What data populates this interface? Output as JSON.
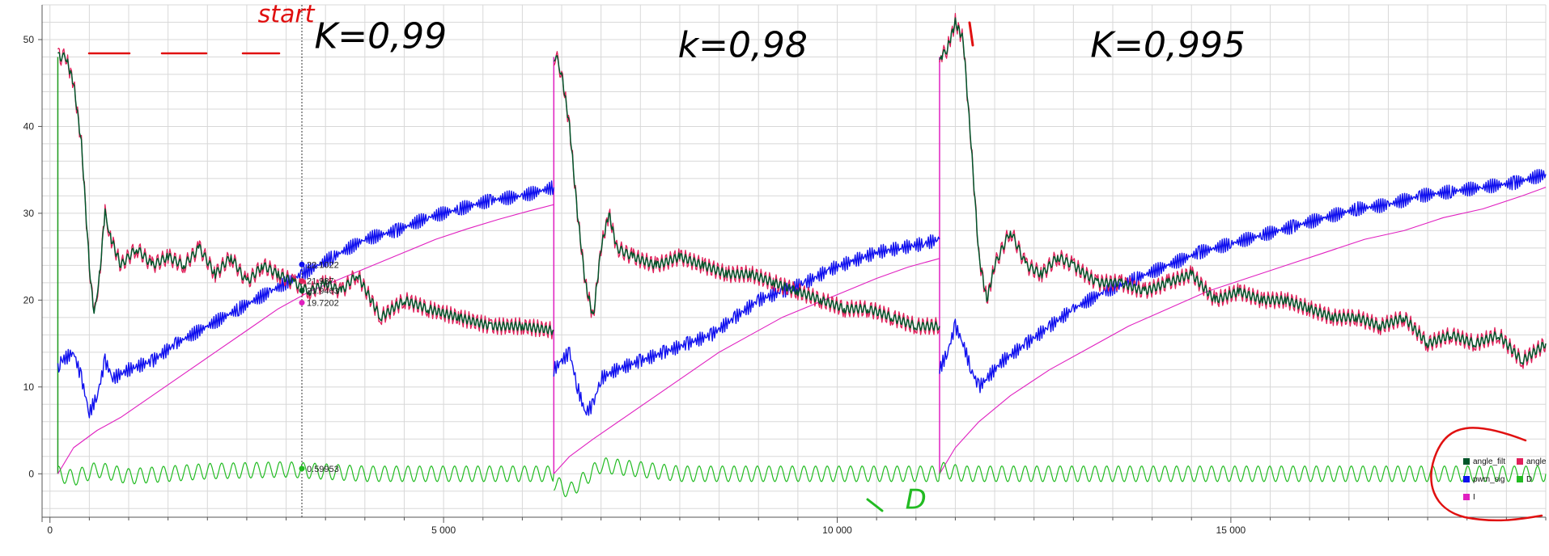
{
  "chart_data": {
    "type": "line",
    "xlim": [
      -100,
      19000
    ],
    "ylim": [
      -5,
      54
    ],
    "y_ticks": [
      0,
      10,
      20,
      30,
      40,
      50
    ],
    "x_ticks": [
      0,
      5000,
      10000,
      15000
    ],
    "x_tick_labels": [
      "0",
      "5 000",
      "10 000",
      "15 000"
    ],
    "grid": true,
    "segments": [
      {
        "start": 100,
        "end": 6400
      },
      {
        "start": 6400,
        "end": 11300
      },
      {
        "start": 11300,
        "end": 19000
      }
    ],
    "series": [
      {
        "name": "angle_filt",
        "color": "#00552a",
        "segments": [
          {
            "x": [
              100,
              130,
              200,
              300,
              400,
              500,
              560,
              640,
              700,
              780,
              900,
              1100,
              1300,
              1500,
              1700,
              1900,
              2100,
              2300,
              2500,
              2700,
              2900,
              3100,
              3300,
              3500,
              3700,
              3900,
              4200,
              4500,
              4800,
              5200,
              5600,
              6000,
              6400
            ],
            "y": [
              48,
              48,
              48,
              45,
              38,
              24,
              18,
              24,
              30,
              27,
              24,
              26,
              24,
              25,
              24,
              26,
              23,
              25,
              22,
              24,
              23,
              22,
              21,
              22,
              21,
              23,
              18,
              20,
              19,
              18,
              17,
              17,
              16.5
            ]
          },
          {
            "x": [
              6400,
              6430,
              6500,
              6600,
              6700,
              6800,
              6900,
              7000,
              7100,
              7200,
              7400,
              7700,
              8000,
              8300,
              8600,
              8900,
              9200,
              9500,
              9800,
              10100,
              10400,
              10700,
              11000,
              11300
            ],
            "y": [
              48,
              48,
              46,
              40,
              30,
              22,
              18,
              26,
              30,
              26,
              25,
              24,
              25,
              24,
              23,
              23,
              22,
              21,
              20,
              19,
              19,
              18,
              17,
              17
            ]
          },
          {
            "x": [
              11300,
              11330,
              11400,
              11500,
              11600,
              11700,
              11800,
              11900,
              12000,
              12200,
              12400,
              12600,
              12800,
              13000,
              13300,
              13600,
              13900,
              14200,
              14500,
              14800,
              15100,
              15400,
              15700,
              16000,
              16300,
              16600,
              16900,
              17200,
              17500,
              17800,
              18100,
              18400,
              18700,
              19000
            ],
            "y": [
              48,
              48,
              49,
              52,
              50,
              38,
              25,
              20,
              24,
              28,
              24,
              23,
              25,
              24,
              22,
              22,
              21,
              22,
              23,
              20,
              21,
              20,
              20,
              19,
              18,
              18,
              17,
              18,
              15,
              16,
              15,
              16,
              13,
              15
            ]
          }
        ]
      },
      {
        "name": "angle",
        "color": "#e0205a",
        "segments": [
          {
            "x": [
              100,
              130,
              200,
              300,
              400,
              500,
              560,
              640,
              700,
              780,
              900,
              1100,
              1300,
              1500,
              1700,
              1900,
              2100,
              2300,
              2500,
              2700,
              2900,
              3100,
              3300,
              3500,
              3700,
              3900,
              4200,
              4500,
              4800,
              5200,
              5600,
              6000,
              6400
            ],
            "y": [
              48,
              48,
              48,
              45,
              38,
              24,
              18,
              24,
              30,
              27,
              24,
              26,
              24,
              25,
              24,
              26,
              23,
              25,
              22,
              24,
              23,
              22,
              21,
              22,
              21,
              23,
              18,
              20,
              19,
              18,
              17,
              17,
              16.5
            ]
          },
          {
            "x": [
              6400,
              6430,
              6500,
              6600,
              6700,
              6800,
              6900,
              7000,
              7100,
              7200,
              7400,
              7700,
              8000,
              8300,
              8600,
              8900,
              9200,
              9500,
              9800,
              10100,
              10400,
              10700,
              11000,
              11300
            ],
            "y": [
              48,
              48,
              46,
              40,
              30,
              22,
              18,
              26,
              30,
              26,
              25,
              24,
              25,
              24,
              23,
              23,
              22,
              21,
              20,
              19,
              19,
              18,
              17,
              17
            ]
          },
          {
            "x": [
              11300,
              11330,
              11400,
              11500,
              11600,
              11700,
              11800,
              11900,
              12000,
              12200,
              12400,
              12600,
              12800,
              13000,
              13300,
              13600,
              13900,
              14200,
              14500,
              14800,
              15100,
              15400,
              15700,
              16000,
              16300,
              16600,
              16900,
              17200,
              17500,
              17800,
              18100,
              18400,
              18700,
              19000
            ],
            "y": [
              48,
              48,
              49,
              52,
              50,
              38,
              25,
              20,
              24,
              28,
              24,
              23,
              25,
              24,
              22,
              22,
              21,
              22,
              23,
              20,
              21,
              20,
              20,
              19,
              18,
              18,
              17,
              18,
              15,
              16,
              15,
              16,
              13,
              15
            ]
          }
        ]
      },
      {
        "name": "pwm_sig",
        "color": "#1010ee",
        "segments": [
          {
            "x": [
              100,
              150,
              300,
              400,
              500,
              600,
              700,
              800,
              1000,
              1300,
              1600,
              2000,
              2400,
              2800,
              3200,
              3600,
              4000,
              4400,
              4800,
              5200,
              5600,
              6000,
              6400
            ],
            "y": [
              12,
              13,
              14,
              11,
              7,
              9,
              13,
              11,
              12,
              13,
              15,
              17,
              19,
              21,
              23,
              25,
              27,
              28,
              29.5,
              30.5,
              31.5,
              32,
              33
            ]
          },
          {
            "x": [
              6400,
              6500,
              6600,
              6700,
              6800,
              6900,
              7000,
              7200,
              7500,
              7800,
              8100,
              8400,
              8700,
              9000,
              9300,
              9600,
              9900,
              10200,
              10500,
              10800,
              11100,
              11300
            ],
            "y": [
              12,
              13,
              14,
              10,
              7,
              8,
              11,
              12,
              13,
              14,
              15,
              16,
              18,
              20,
              21,
              22,
              23.5,
              24.5,
              25.5,
              26,
              26.5,
              27
            ]
          },
          {
            "x": [
              11300,
              11400,
              11500,
              11600,
              11700,
              11800,
              11900,
              12100,
              12400,
              12700,
              13000,
              13400,
              13800,
              14200,
              14600,
              15000,
              15400,
              15800,
              16200,
              16600,
              17000,
              17400,
              17800,
              18200,
              18600,
              19000
            ],
            "y": [
              12,
              14,
              17,
              15,
              12,
              10,
              11,
              13,
              15,
              17,
              19,
              21,
              22.5,
              24,
              25.5,
              26.5,
              27.5,
              28.5,
              29.5,
              30.5,
              31,
              32,
              32.5,
              33,
              33.5,
              34.5
            ]
          }
        ]
      },
      {
        "name": "D",
        "color": "#22bb22",
        "segments": [
          {
            "x": [
              100,
              300,
              600,
              1000,
              2000,
              3000,
              4000,
              5000,
              6400
            ],
            "y": [
              0,
              -0.5,
              0.5,
              -0.3,
              0.3,
              0.5,
              0,
              0,
              0
            ]
          },
          {
            "x": [
              6400,
              6600,
              7000,
              8000,
              9000,
              10000,
              11000,
              11300
            ],
            "y": [
              -1,
              -2,
              1,
              0,
              0,
              0,
              0,
              0
            ]
          },
          {
            "x": [
              11300,
              11600,
              12000,
              13000,
              15000,
              17000,
              19000
            ],
            "y": [
              0.5,
              0,
              0,
              0,
              0,
              0,
              0
            ]
          }
        ]
      },
      {
        "name": "I",
        "color": "#e020c0",
        "segments": [
          {
            "x": [
              100,
              300,
              600,
              900,
              1300,
              1700,
              2100,
              2500,
              2900,
              3300,
              3700,
              4100,
              4500,
              4900,
              5300,
              5700,
              6100,
              6400
            ],
            "y": [
              0,
              3,
              5,
              6.5,
              9,
              11.5,
              14,
              16.5,
              19,
              21,
              22.5,
              24,
              25.5,
              27,
              28.2,
              29.3,
              30.3,
              31
            ]
          },
          {
            "x": [
              6400,
              6600,
              6900,
              7300,
              7700,
              8100,
              8500,
              8900,
              9300,
              9700,
              10100,
              10500,
              10900,
              11300
            ],
            "y": [
              0,
              2,
              4,
              6.5,
              9,
              11.5,
              14,
              16,
              18,
              19.5,
              21,
              22.5,
              23.8,
              24.8
            ]
          },
          {
            "x": [
              11300,
              11500,
              11800,
              12200,
              12700,
              13200,
              13700,
              14200,
              14700,
              15200,
              15700,
              16200,
              16700,
              17200,
              17700,
              18200,
              18700,
              19000
            ],
            "y": [
              0,
              3,
              6,
              9,
              12,
              14.5,
              17,
              19,
              21,
              22.5,
              24,
              25.5,
              27,
              28,
              29.5,
              30.5,
              32,
              33
            ]
          }
        ]
      }
    ],
    "cursor": {
      "x": 3200,
      "labels": [
        {
          "value": "0.59953",
          "y": 0.6,
          "color": "#22bb22"
        },
        {
          "value": "22.1022",
          "y": 24.1,
          "color": "#1010ee"
        },
        {
          "value": "21.937",
          "y": 22.2,
          "color": "#e0205a"
        },
        {
          "value": "21.9463",
          "y": 21.1,
          "color": "#00552a"
        },
        {
          "value": "19.7202",
          "y": 19.7,
          "color": "#e020c0"
        }
      ]
    },
    "legend": {
      "placement": "bottom-right",
      "entries": [
        {
          "name": "angle_filt",
          "color": "#00552a"
        },
        {
          "name": "angle",
          "color": "#e0205a"
        },
        {
          "name": "pwm_sig",
          "color": "#1010ee"
        },
        {
          "name": "D",
          "color": "#22bb22"
        },
        {
          "name": "I",
          "color": "#e020c0"
        }
      ]
    },
    "annotations": [
      {
        "text": "start",
        "x": 3000,
        "y": 52,
        "color": "#e01010"
      },
      {
        "text": "K=0,99",
        "x": 4200,
        "y": 49,
        "color": "#000000"
      },
      {
        "text": "k=0,98",
        "x": 8800,
        "y": 48,
        "color": "#000000"
      },
      {
        "text": "K=0,995",
        "x": 14200,
        "y": 48,
        "color": "#000000"
      },
      {
        "text": "D",
        "x": 11000,
        "y": -4,
        "color": "#22bb22"
      }
    ]
  }
}
